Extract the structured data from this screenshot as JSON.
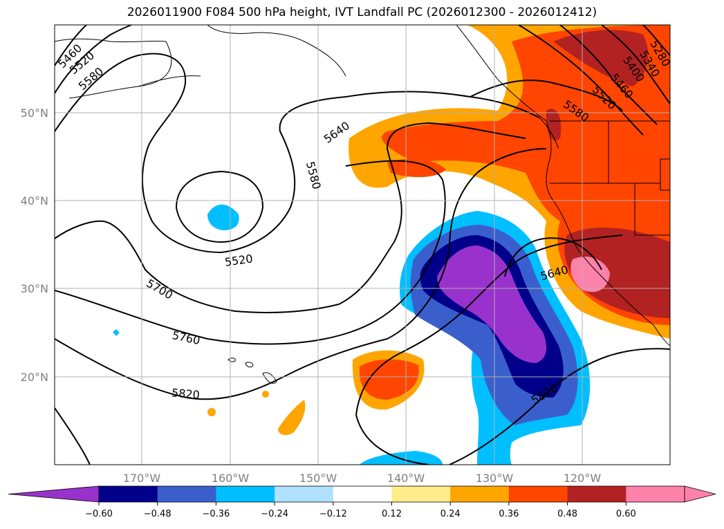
{
  "title": "2026011900 F084 500 hPa height, IVT Landfall PC (2026012300 - 2026012412)",
  "map": {
    "latitude_labels": [
      "50°N",
      "40°N",
      "30°N",
      "20°N"
    ],
    "longitude_labels": [
      "170°W",
      "160°W",
      "150°W",
      "140°W",
      "130°W",
      "120°W"
    ]
  },
  "contour_labels": [
    "5460",
    "5520",
    "5580",
    "5640",
    "5580",
    "5520",
    "5700",
    "5760",
    "5820",
    "5640",
    "5820",
    "5580",
    "5520",
    "5460",
    "5400",
    "5340",
    "5280"
  ],
  "colorbar": {
    "ticks": [
      "−0.60",
      "−0.48",
      "−0.36",
      "−0.24",
      "−0.12",
      "0.12",
      "0.24",
      "0.36",
      "0.48",
      "0.60"
    ],
    "colors": [
      "#9932cc",
      "#00008b",
      "#3a5fcd",
      "#00bfff",
      "#b0e2ff",
      "#ffffff",
      "#ffec8b",
      "#ffa500",
      "#ff4500",
      "#b22222",
      "#ff82ab",
      "#ff82ab"
    ]
  }
}
